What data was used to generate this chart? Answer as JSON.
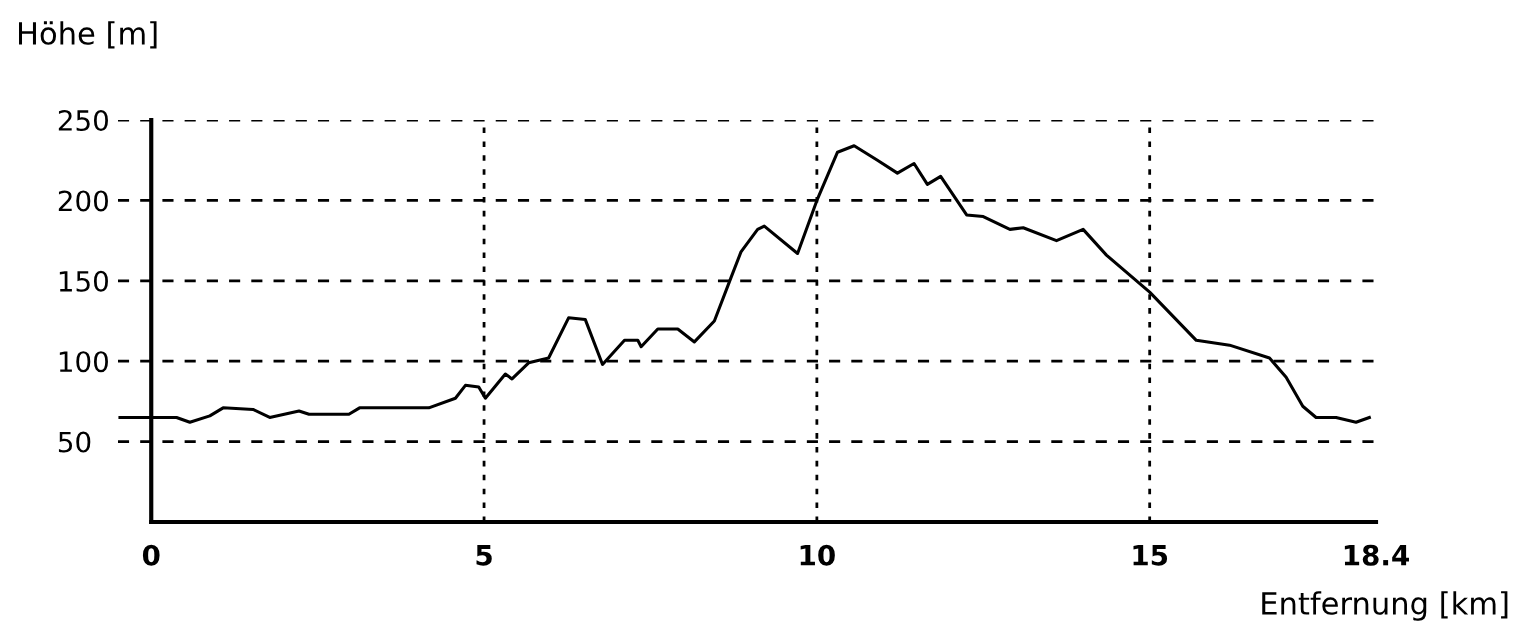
{
  "chart_data": {
    "type": "line",
    "ylabel": "Höhe [m]",
    "xlabel": "Entfernung [km]",
    "xlim": [
      -0.5,
      18.4
    ],
    "ylim": [
      0,
      250
    ],
    "xticks": [
      0,
      5,
      10,
      15,
      18.4
    ],
    "yticks": [
      50,
      100,
      150,
      200,
      250
    ],
    "grid": true,
    "legend": false,
    "marker": "none",
    "line_style": "solid",
    "series": [
      {
        "color": "#000000",
        "x": [
          -0.47,
          0.38,
          0.58,
          0.88,
          1.08,
          1.53,
          1.78,
          2.22,
          2.37,
          2.97,
          3.13,
          4.17,
          4.57,
          4.72,
          4.92,
          5.02,
          5.32,
          5.42,
          5.67,
          5.97,
          6.27,
          6.52,
          6.78,
          7.11,
          7.31,
          7.36,
          7.61,
          7.91,
          8.16,
          8.46,
          8.71,
          8.86,
          9.11,
          9.21,
          9.71,
          10.01,
          10.31,
          10.56,
          10.91,
          11.21,
          11.46,
          11.66,
          11.86,
          12.25,
          12.5,
          12.9,
          13.1,
          13.6,
          14.0,
          14.35,
          15.0,
          15.7,
          16.2,
          16.8,
          17.05,
          17.3,
          17.5,
          17.8,
          18.1,
          18.3
        ],
        "values": [
          65,
          65,
          62,
          66,
          71,
          70,
          65,
          69,
          67,
          67,
          71,
          71,
          77,
          85,
          84,
          77,
          92,
          89,
          99,
          102,
          127,
          126,
          98,
          113,
          113,
          109,
          120,
          120,
          112,
          125,
          152,
          168,
          182,
          184,
          167,
          201,
          230,
          234,
          225,
          217,
          223,
          210,
          215,
          191,
          190,
          182,
          183,
          175,
          182,
          166,
          143,
          113,
          110,
          102,
          90,
          72,
          65,
          65,
          62,
          65
        ]
      }
    ]
  }
}
